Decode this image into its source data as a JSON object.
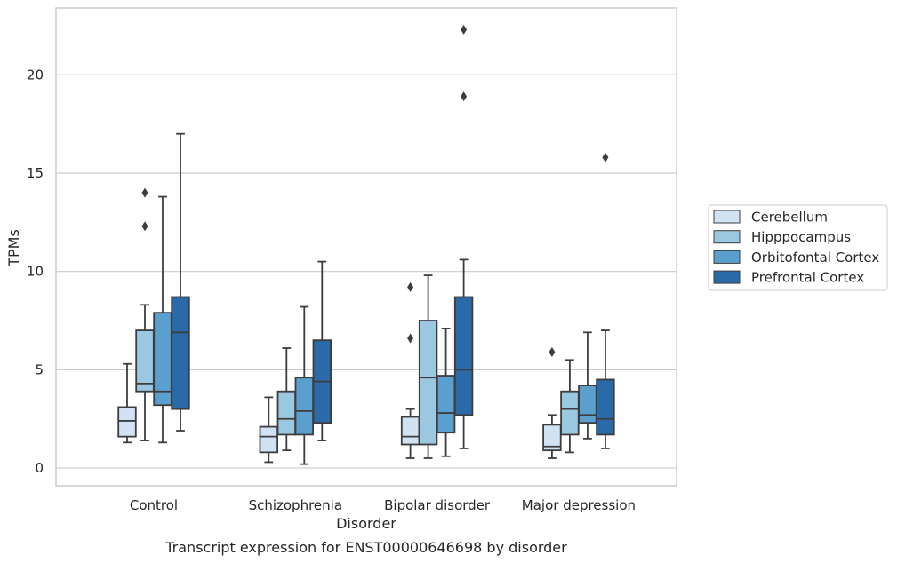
{
  "chart_data": {
    "type": "box",
    "title": "",
    "caption": "Transcript expression for ENST00000646698 by disorder",
    "xlabel": "Disorder",
    "ylabel": "TPMs",
    "ylim": [
      -0.9,
      23.4
    ],
    "yticks": [
      0,
      5,
      10,
      15,
      20
    ],
    "grid": true,
    "legend_position": "right",
    "categories": [
      "Control",
      "Schizophrenia",
      "Bipolar disorder",
      "Major depression"
    ],
    "series": [
      {
        "name": "Cerebellum",
        "color": "#d1e2f3",
        "boxes": [
          {
            "whisker_low": 1.3,
            "q1": 1.6,
            "median": 2.4,
            "q3": 3.1,
            "whisker_high": 5.3,
            "outliers": []
          },
          {
            "whisker_low": 0.3,
            "q1": 0.8,
            "median": 1.6,
            "q3": 2.1,
            "whisker_high": 3.6,
            "outliers": []
          },
          {
            "whisker_low": 0.5,
            "q1": 1.2,
            "median": 1.6,
            "q3": 2.6,
            "whisker_high": 3.0,
            "outliers": [
              6.6,
              9.2
            ]
          },
          {
            "whisker_low": 0.5,
            "q1": 0.9,
            "median": 1.1,
            "q3": 2.2,
            "whisker_high": 2.7,
            "outliers": [
              5.9
            ]
          }
        ]
      },
      {
        "name": "Hipppocampus",
        "color": "#9ac8e0",
        "boxes": [
          {
            "whisker_low": 1.4,
            "q1": 3.9,
            "median": 4.3,
            "q3": 7.0,
            "whisker_high": 8.3,
            "outliers": [
              12.3,
              14.0
            ]
          },
          {
            "whisker_low": 0.9,
            "q1": 1.7,
            "median": 2.5,
            "q3": 3.9,
            "whisker_high": 6.1,
            "outliers": []
          },
          {
            "whisker_low": 0.5,
            "q1": 1.2,
            "median": 4.6,
            "q3": 7.5,
            "whisker_high": 9.8,
            "outliers": []
          },
          {
            "whisker_low": 0.8,
            "q1": 1.7,
            "median": 3.0,
            "q3": 3.9,
            "whisker_high": 5.5,
            "outliers": []
          }
        ]
      },
      {
        "name": "Orbitofontal Cortex",
        "color": "#5a9fcd",
        "boxes": [
          {
            "whisker_low": 1.3,
            "q1": 3.2,
            "median": 3.9,
            "q3": 7.9,
            "whisker_high": 13.8,
            "outliers": []
          },
          {
            "whisker_low": 0.2,
            "q1": 1.7,
            "median": 2.9,
            "q3": 4.6,
            "whisker_high": 8.2,
            "outliers": []
          },
          {
            "whisker_low": 0.6,
            "q1": 1.8,
            "median": 2.8,
            "q3": 4.7,
            "whisker_high": 7.1,
            "outliers": []
          },
          {
            "whisker_low": 1.5,
            "q1": 2.3,
            "median": 2.7,
            "q3": 4.2,
            "whisker_high": 6.9,
            "outliers": []
          }
        ]
      },
      {
        "name": "Prefrontal Cortex",
        "color": "#2b6aa8",
        "boxes": [
          {
            "whisker_low": 1.9,
            "q1": 3.0,
            "median": 6.9,
            "q3": 8.7,
            "whisker_high": 17.0,
            "outliers": []
          },
          {
            "whisker_low": 1.4,
            "q1": 2.3,
            "median": 4.4,
            "q3": 6.5,
            "whisker_high": 10.5,
            "outliers": []
          },
          {
            "whisker_low": 1.0,
            "q1": 2.7,
            "median": 5.0,
            "q3": 8.7,
            "whisker_high": 10.6,
            "outliers": [
              18.9,
              22.3
            ]
          },
          {
            "whisker_low": 1.0,
            "q1": 1.7,
            "median": 2.5,
            "q3": 4.5,
            "whisker_high": 7.0,
            "outliers": [
              15.8
            ]
          }
        ]
      }
    ]
  }
}
